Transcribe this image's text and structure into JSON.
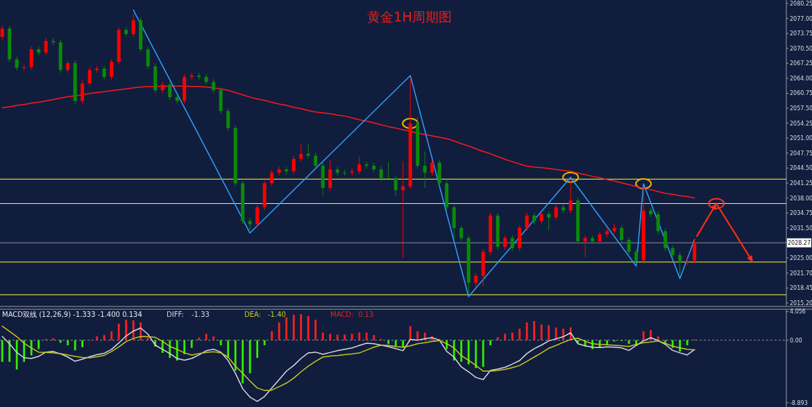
{
  "chart_data": [
    {
      "type": "candlestick",
      "title": "黄金1H周期图",
      "categories": [
        null,
        null,
        null,
        null,
        null,
        null,
        null,
        null,
        null,
        null,
        null,
        null,
        null,
        null,
        null,
        null,
        null,
        null,
        null,
        null,
        null,
        null,
        null,
        null,
        null,
        null,
        null,
        null,
        null,
        null,
        null,
        null,
        null,
        null,
        null,
        null,
        null,
        null,
        null,
        null,
        null,
        null,
        null,
        null,
        null,
        null,
        null,
        null,
        null,
        null,
        null,
        null,
        null,
        null,
        null,
        null,
        null,
        null,
        null,
        null,
        null,
        null,
        null,
        null,
        null,
        null,
        null,
        null,
        null,
        null,
        null,
        null,
        null,
        null,
        null,
        null,
        null,
        null,
        null,
        null,
        null,
        null,
        null,
        null,
        null,
        null,
        null,
        null,
        null,
        null,
        null,
        null,
        null,
        null,
        null,
        null
      ],
      "ohlc": [
        [
          2073.0,
          2075.4,
          2072.4,
          2074.8
        ],
        [
          2074.8,
          2075.4,
          2067.5,
          2068.1
        ],
        [
          2068.1,
          2068.7,
          2065.7,
          2066.3
        ],
        [
          2066.3,
          2067.0,
          2065.7,
          2066.4
        ],
        [
          2066.4,
          2070.9,
          2065.8,
          2070.3
        ],
        [
          2070.3,
          2070.9,
          2069.0,
          2069.6
        ],
        [
          2069.6,
          2072.7,
          2069.0,
          2072.1
        ],
        [
          2072.1,
          2072.7,
          2071.2,
          2071.8
        ],
        [
          2071.8,
          2072.4,
          2065.2,
          2065.8
        ],
        [
          2065.8,
          2067.9,
          2065.2,
          2067.3
        ],
        [
          2067.3,
          2067.9,
          2058.5,
          2059.1
        ],
        [
          2059.1,
          2063.5,
          2058.5,
          2062.9
        ],
        [
          2062.9,
          2066.4,
          2062.3,
          2065.8
        ],
        [
          2065.8,
          2066.7,
          2065.2,
          2066.1
        ],
        [
          2066.1,
          2066.7,
          2063.7,
          2064.3
        ],
        [
          2064.3,
          2068.2,
          2063.7,
          2067.6
        ],
        [
          2067.6,
          2075.1,
          2067.0,
          2074.5
        ],
        [
          2074.5,
          2075.1,
          2073.0,
          2073.6
        ],
        [
          2073.6,
          2078.0,
          2073.0,
          2076.6
        ],
        [
          2076.6,
          2077.2,
          2069.7,
          2070.3
        ],
        [
          2070.3,
          2070.9,
          2066.0,
          2066.6
        ],
        [
          2066.6,
          2067.2,
          2060.8,
          2061.4
        ],
        [
          2061.4,
          2063.2,
          2060.8,
          2062.6
        ],
        [
          2062.6,
          2063.2,
          2059.3,
          2059.9
        ],
        [
          2059.9,
          2060.5,
          2058.5,
          2059.1
        ],
        [
          2059.1,
          2064.9,
          2058.5,
          2064.3
        ],
        [
          2064.3,
          2065.2,
          2063.7,
          2064.6
        ],
        [
          2064.6,
          2065.2,
          2063.7,
          2064.3
        ],
        [
          2064.3,
          2064.9,
          2062.6,
          2063.2
        ],
        [
          2063.2,
          2063.8,
          2060.8,
          2061.4
        ],
        [
          2061.4,
          2062.0,
          2056.3,
          2056.9
        ],
        [
          2056.9,
          2057.5,
          2052.6,
          2053.2
        ],
        [
          2053.2,
          2053.8,
          2040.6,
          2041.2
        ],
        [
          2041.2,
          2041.8,
          2032.4,
          2033.0
        ],
        [
          2033.0,
          2033.6,
          2031.0,
          2032.3
        ],
        [
          2032.3,
          2036.6,
          2031.7,
          2036.0
        ],
        [
          2036.0,
          2041.8,
          2035.4,
          2041.2
        ],
        [
          2041.2,
          2044.1,
          2040.6,
          2043.5
        ],
        [
          2043.5,
          2044.8,
          2042.9,
          2044.2
        ],
        [
          2044.2,
          2044.8,
          2043.2,
          2043.8
        ],
        [
          2043.8,
          2047.1,
          2043.2,
          2046.5
        ],
        [
          2046.5,
          2049.8,
          2045.9,
          2047.6
        ],
        [
          2047.6,
          2049.6,
          2046.6,
          2047.2
        ],
        [
          2047.2,
          2047.8,
          2044.4,
          2045.0
        ],
        [
          2045.0,
          2045.6,
          2038.6,
          2040.2
        ],
        [
          2040.2,
          2046.3,
          2039.6,
          2044.2
        ],
        [
          2044.2,
          2044.8,
          2042.9,
          2043.5
        ],
        [
          2043.5,
          2044.1,
          2042.9,
          2043.5
        ],
        [
          2043.5,
          2044.4,
          2042.9,
          2043.8
        ],
        [
          2043.8,
          2047.0,
          2043.2,
          2045.3
        ],
        [
          2045.3,
          2045.9,
          2044.4,
          2045.0
        ],
        [
          2045.0,
          2045.6,
          2043.6,
          2044.2
        ],
        [
          2044.2,
          2044.8,
          2041.7,
          2042.3
        ],
        [
          2042.3,
          2045.8,
          2041.7,
          2042.3
        ],
        [
          2042.3,
          2042.9,
          2038.4,
          2039.7
        ],
        [
          2039.7,
          2046.0,
          2025.0,
          2040.5
        ],
        [
          2040.5,
          2064.0,
          2040.0,
          2054.2
        ],
        [
          2054.2,
          2055.6,
          2044.4,
          2045.0
        ],
        [
          2045.0,
          2048.1,
          2040.2,
          2043.5
        ],
        [
          2043.5,
          2046.3,
          2042.9,
          2045.7
        ],
        [
          2045.7,
          2046.3,
          2040.6,
          2041.2
        ],
        [
          2041.2,
          2041.8,
          2035.4,
          2036.0
        ],
        [
          2036.0,
          2036.6,
          2029.0,
          2031.5
        ],
        [
          2031.5,
          2032.1,
          2028.7,
          2029.3
        ],
        [
          2029.3,
          2029.9,
          2017.2,
          2019.6
        ],
        [
          2019.6,
          2021.7,
          2018.5,
          2021.1
        ],
        [
          2021.1,
          2026.9,
          2018.8,
          2026.3
        ],
        [
          2026.3,
          2034.8,
          2025.7,
          2034.2
        ],
        [
          2034.2,
          2034.8,
          2026.8,
          2027.4
        ],
        [
          2027.4,
          2029.9,
          2026.8,
          2029.3
        ],
        [
          2029.3,
          2029.9,
          2026.5,
          2027.1
        ],
        [
          2027.1,
          2032.1,
          2026.5,
          2031.5
        ],
        [
          2031.5,
          2034.8,
          2030.9,
          2034.2
        ],
        [
          2034.2,
          2034.8,
          2032.4,
          2033.0
        ],
        [
          2033.0,
          2035.1,
          2032.4,
          2034.5
        ],
        [
          2034.5,
          2035.1,
          2031.0,
          2033.8
        ],
        [
          2033.8,
          2036.6,
          2033.2,
          2036.0
        ],
        [
          2036.0,
          2036.6,
          2034.7,
          2035.3
        ],
        [
          2035.3,
          2041.9,
          2034.7,
          2037.5
        ],
        [
          2037.5,
          2038.1,
          2028.0,
          2028.6
        ],
        [
          2028.6,
          2029.9,
          2025.2,
          2029.3
        ],
        [
          2029.3,
          2029.9,
          2028.0,
          2028.6
        ],
        [
          2028.6,
          2030.7,
          2028.0,
          2030.1
        ],
        [
          2030.1,
          2031.4,
          2029.5,
          2030.8
        ],
        [
          2030.8,
          2032.5,
          2030.2,
          2031.5
        ],
        [
          2031.5,
          2032.1,
          2028.3,
          2028.9
        ],
        [
          2028.9,
          2029.5,
          2025.7,
          2026.3
        ],
        [
          2026.3,
          2026.9,
          2023.8,
          2024.4
        ],
        [
          2024.4,
          2040.5,
          2023.8,
          2035.3
        ],
        [
          2035.3,
          2035.9,
          2033.9,
          2034.5
        ],
        [
          2034.5,
          2035.1,
          2030.2,
          2030.8
        ],
        [
          2030.8,
          2031.4,
          2026.5,
          2027.1
        ],
        [
          2027.1,
          2027.7,
          2025.0,
          2025.6
        ],
        [
          2025.6,
          2026.2,
          2021.2,
          2024.1
        ],
        [
          2024.1,
          2025.0,
          2023.5,
          2024.4
        ],
        [
          2024.4,
          2028.9,
          2023.8,
          2028.3
        ]
      ],
      "colors": [
        "#ff0000",
        "#0a8a0a",
        "#0a8a0a",
        "#ff0000",
        "#ff0000",
        "#0a8a0a",
        "#ff0000",
        "#0a8a0a",
        "#0a8a0a",
        "#ff0000",
        "#0a8a0a",
        "#ff0000",
        "#ff0000",
        "#ff0000",
        "#0a8a0a",
        "#ff0000",
        "#ff0000",
        "#0a8a0a",
        "#ff0000",
        "#0a8a0a",
        "#0a8a0a",
        "#0a8a0a",
        "#ff0000",
        "#0a8a0a",
        "#0a8a0a",
        "#ff0000",
        "#ff0000",
        "#0a8a0a",
        "#0a8a0a",
        "#0a8a0a",
        "#0a8a0a",
        "#0a8a0a",
        "#0a8a0a",
        "#0a8a0a",
        "#0a8a0a",
        "#ff0000",
        "#ff0000",
        "#ff0000",
        "#ff0000",
        "#0a8a0a",
        "#ff0000",
        "#ff0000",
        "#0a8a0a",
        "#0a8a0a",
        "#0a8a0a",
        "#ff0000",
        "#0a8a0a",
        "#0a8a0a",
        "#ff0000",
        "#ff0000",
        "#0a8a0a",
        "#0a8a0a",
        "#0a8a0a",
        "#0a8a0a",
        "#0a8a0a",
        "#ff0000",
        "#ff0000",
        "#0a8a0a",
        "#0a8a0a",
        "#ff0000",
        "#0a8a0a",
        "#0a8a0a",
        "#0a8a0a",
        "#0a8a0a",
        "#0a8a0a",
        "#ff0000",
        "#ff0000",
        "#ff0000",
        "#0a8a0a",
        "#ff0000",
        "#0a8a0a",
        "#ff0000",
        "#ff0000",
        "#0a8a0a",
        "#ff0000",
        "#0a8a0a",
        "#ff0000",
        "#0a8a0a",
        "#ff0000",
        "#0a8a0a",
        "#ff0000",
        "#0a8a0a",
        "#ff0000",
        "#ff0000",
        "#ff0000",
        "#0a8a0a",
        "#0a8a0a",
        "#0a8a0a",
        "#ff0000",
        "#0a8a0a",
        "#0a8a0a",
        "#0a8a0a",
        "#0a8a0a",
        "#0a8a0a",
        "#ff0000",
        "#ff0000"
      ],
      "series": [
        {
          "type": "line",
          "color": "#ff1a1a",
          "values": [
            2057.6,
            2057.8,
            2058.1,
            2058.3,
            2058.6,
            2058.8,
            2059.1,
            2059.4,
            2059.7,
            2060.0,
            2060.2,
            2060.4,
            2060.7,
            2060.9,
            2061.1,
            2061.3,
            2061.5,
            2061.7,
            2061.9,
            2062.1,
            2062.2,
            2062.2,
            2062.3,
            2062.3,
            2062.3,
            2062.3,
            2062.2,
            2062.2,
            2062.1,
            2061.9,
            2061.7,
            2061.4,
            2060.9,
            2060.4,
            2059.9,
            2059.5,
            2059.2,
            2058.8,
            2058.4,
            2058.1,
            2057.7,
            2057.4,
            2057.0,
            2056.7,
            2056.5,
            2056.3,
            2056.0,
            2055.8,
            2055.4,
            2055.0,
            2054.7,
            2054.3,
            2053.9,
            2053.5,
            2053.2,
            2052.8,
            2052.5,
            2052.1,
            2051.8,
            2051.5,
            2051.2,
            2050.9,
            2050.4,
            2049.8,
            2049.3,
            2048.7,
            2048.1,
            2047.6,
            2047.0,
            2046.4,
            2045.9,
            2045.4,
            2044.9,
            2044.7,
            2044.6,
            2044.4,
            2044.2,
            2044.0,
            2043.8,
            2043.4,
            2043.1,
            2042.7,
            2042.4,
            2042.0,
            2041.7,
            2041.3,
            2040.9,
            2040.5,
            2040.1,
            2039.8,
            2039.4,
            2039.0,
            2038.8,
            2038.5,
            2038.3,
            2038.0
          ]
        },
        {
          "type": "line",
          "color": "#2ea0ff",
          "values": [
            null,
            null,
            null,
            null,
            null,
            null,
            null,
            null,
            null,
            null,
            null,
            null,
            null,
            null,
            null,
            null,
            null,
            null,
            2078.8,
            null,
            null,
            null,
            null,
            null,
            null,
            null,
            null,
            null,
            null,
            null,
            null,
            null,
            null,
            null,
            2030.4,
            null,
            null,
            null,
            null,
            null,
            null,
            null,
            null,
            null,
            null,
            null,
            null,
            null,
            null,
            null,
            null,
            null,
            null,
            null,
            null,
            null,
            2064.6,
            null,
            null,
            null,
            null,
            null,
            null,
            null,
            2016.6,
            null,
            null,
            null,
            null,
            null,
            null,
            null,
            null,
            null,
            null,
            null,
            null,
            null,
            2042.5,
            null,
            null,
            null,
            null,
            null,
            null,
            null,
            null,
            2023.2,
            2041.1,
            null,
            null,
            null,
            null,
            2020.5,
            null,
            2029.0
          ]
        }
      ],
      "ref_lines": [
        {
          "axis": "y",
          "value": 2042.1,
          "color": "#ffff33"
        },
        {
          "axis": "y",
          "value": 2036.8,
          "color": "#ffff33"
        },
        {
          "axis": "y",
          "value": 2024.1,
          "color": "#ffff33"
        },
        {
          "axis": "y",
          "value": 2017.0,
          "color": "#ffff33"
        },
        {
          "axis": "y",
          "value": 2028.27,
          "label": "2028.27",
          "color": "#8a8f99"
        }
      ],
      "ylim": [
        2014.6,
        2081.0
      ],
      "yticks": [
        2080.25,
        {
          "value": 2077,
          "label": "2077.00"
        },
        2073.75,
        {
          "value": 2070.5,
          "label": "2070.50"
        },
        2067.25,
        {
          "value": 2064,
          "label": "2064.00"
        },
        2060.75,
        {
          "value": 2057.5,
          "label": "2057.50"
        },
        2054.25,
        {
          "value": 2051,
          "label": "2051.00"
        },
        2047.75,
        {
          "value": 2044.5,
          "label": "2044.50"
        },
        2041.25,
        {
          "value": 2038,
          "label": "2038.00"
        },
        2034.75,
        {
          "value": 2031.5,
          "label": "2031.50"
        },
        {
          "value": 2025,
          "label": "2025.00"
        },
        {
          "value": 2021.7,
          "label": "2021.70"
        },
        2018.45,
        {
          "value": 2015.2,
          "label": "2015.20"
        }
      ],
      "tick_labels": "y"
    },
    {
      "type": "bar",
      "title": "MACD双线 (12,26,9) -1.333 -1.400 0.134",
      "categories": [
        null,
        null,
        null,
        null,
        null,
        null,
        null,
        null,
        null,
        null,
        null,
        null,
        null,
        null,
        null,
        null,
        null,
        null,
        null,
        null,
        null,
        null,
        null,
        null,
        null,
        null,
        null,
        null,
        null,
        null,
        null,
        null,
        null,
        null,
        null,
        null,
        null,
        null,
        null,
        null,
        null,
        null,
        null,
        null,
        null,
        null,
        null,
        null,
        null,
        null,
        null,
        null,
        null,
        null,
        null,
        null,
        null,
        null,
        null,
        null,
        null,
        null,
        null,
        null,
        null,
        null,
        null,
        null,
        null,
        null,
        null,
        null,
        null,
        null,
        null,
        null,
        null,
        null,
        null,
        null,
        null,
        null,
        null,
        null,
        null,
        null,
        null,
        null,
        null,
        null,
        null,
        null,
        null,
        null,
        null,
        null
      ],
      "series": [
        {
          "name": "DIFF:",
          "type": "line",
          "color": "#d8d8e0",
          "values": [
            0.54,
            -0.5,
            -1.75,
            -2.5,
            -2.6,
            -2.3,
            -1.7,
            -1.6,
            -1.95,
            -2.4,
            -3.0,
            -2.7,
            -2.35,
            -2.05,
            -1.85,
            -1.3,
            -0.4,
            0.6,
            1.3,
            1.74,
            0.85,
            -0.7,
            -1.3,
            -1.9,
            -2.6,
            -2.85,
            -2.6,
            -2.1,
            -1.5,
            -1.3,
            -1.7,
            -2.9,
            -4.7,
            -6.9,
            -8.1,
            -8.7,
            -8.0,
            -6.8,
            -5.6,
            -4.4,
            -3.6,
            -2.6,
            -1.8,
            -1.7,
            -2.0,
            -1.75,
            -1.5,
            -1.3,
            -1.1,
            -0.75,
            -0.43,
            -0.5,
            -0.7,
            -0.92,
            -1.2,
            -1.5,
            0.1,
            0.0,
            0.2,
            0.36,
            0.0,
            -1.6,
            -2.4,
            -3.8,
            -4.5,
            -5.3,
            -5.6,
            -4.3,
            -4.1,
            -3.85,
            -3.4,
            -2.9,
            -1.9,
            -1.2,
            -0.7,
            -0.1,
            0.2,
            0.5,
            1.05,
            -0.5,
            -0.8,
            -1.0,
            -1.05,
            -0.95,
            -1.0,
            -1.1,
            -1.45,
            -0.75,
            -0.1,
            0.36,
            -0.05,
            -0.6,
            -1.45,
            -1.8,
            -2.1,
            -1.33
          ]
        },
        {
          "name": "DEA:",
          "type": "line",
          "color": "#c8c81e",
          "values": [
            1.99,
            1.25,
            0.5,
            -0.45,
            -1.1,
            -1.7,
            -1.74,
            -1.8,
            -1.9,
            -2.1,
            -2.3,
            -2.45,
            -2.5,
            -2.35,
            -2.15,
            -1.6,
            -0.95,
            -0.2,
            0.25,
            0.54,
            0.5,
            0.4,
            -0.15,
            -0.9,
            -1.3,
            -1.8,
            -2.1,
            -1.9,
            -1.74,
            -1.65,
            -1.8,
            -2.4,
            -3.7,
            -4.7,
            -5.8,
            -6.8,
            -7.15,
            -7.1,
            -6.6,
            -6.1,
            -5.4,
            -4.5,
            -3.7,
            -3.0,
            -2.4,
            -2.25,
            -2.17,
            -2.05,
            -1.95,
            -1.82,
            -1.4,
            -1.0,
            -0.7,
            -0.75,
            -0.9,
            -1.0,
            -0.8,
            -0.5,
            -0.35,
            -0.18,
            -0.05,
            -0.5,
            -1.1,
            -2.2,
            -2.85,
            -3.6,
            -4.4,
            -4.4,
            -4.3,
            -4.15,
            -3.9,
            -3.6,
            -3.0,
            -2.4,
            -1.8,
            -1.15,
            -0.75,
            -0.3,
            0.1,
            0.29,
            -0.15,
            -0.5,
            -0.6,
            -0.65,
            -0.72,
            -0.8,
            -0.9,
            -0.6,
            -0.36,
            -0.25,
            -0.11,
            -0.45,
            -0.85,
            -1.1,
            -1.3,
            -1.4
          ]
        },
        {
          "name": "MACD:",
          "color": "#e52222",
          "values": [
            -3.08,
            -3.08,
            -4.16,
            -3.08,
            -2.17,
            -1.27,
            0.18,
            0.29,
            -0.36,
            -0.72,
            -1.45,
            -1.01,
            0.07,
            0.54,
            0.72,
            1.27,
            2.35,
            2.9,
            2.82,
            2.53,
            0.36,
            -0.91,
            -1.81,
            -2.53,
            -2.9,
            -1.99,
            -1.09,
            0.36,
            0.91,
            0.54,
            -0.72,
            -2.53,
            -4.34,
            -6.15,
            -4.71,
            -2.53,
            -0.72,
            1.27,
            2.53,
            3.26,
            3.62,
            3.69,
            3.44,
            2.9,
            1.09,
            0.91,
            0.8,
            0.8,
            0.91,
            1.09,
            1.09,
            0.72,
            0.18,
            -0.54,
            -0.91,
            -1.01,
            1.99,
            1.27,
            1.09,
            0.54,
            0.18,
            -1.27,
            -2.9,
            -3.08,
            -3.44,
            -3.98,
            -3.8,
            -0.72,
            0.43,
            0.91,
            1.09,
            1.63,
            2.53,
            2.72,
            2.24,
            2.1,
            1.81,
            1.63,
            1.81,
            -0.36,
            -0.91,
            -1.27,
            -1.09,
            -0.72,
            -0.18,
            -0.11,
            -0.54,
            -0.54,
            1.27,
            1.45,
            0.54,
            -0.36,
            -1.09,
            -1.63,
            -0.72,
            0.13
          ],
          "colors": [
            "#33ee00",
            "#33ee00",
            "#33ee00",
            "#33ee00",
            "#33ee00",
            "#33ee00",
            "#ff2020",
            "#ff2020",
            "#33ee00",
            "#33ee00",
            "#33ee00",
            "#33ee00",
            "#ff2020",
            "#ff2020",
            "#ff2020",
            "#ff2020",
            "#ff2020",
            "#ff2020",
            "#ff2020",
            "#ff2020",
            "#ff2020",
            "#33ee00",
            "#33ee00",
            "#33ee00",
            "#33ee00",
            "#33ee00",
            "#33ee00",
            "#ff2020",
            "#ff2020",
            "#ff2020",
            "#33ee00",
            "#33ee00",
            "#33ee00",
            "#33ee00",
            "#33ee00",
            "#33ee00",
            "#33ee00",
            "#ff2020",
            "#ff2020",
            "#ff2020",
            "#ff2020",
            "#ff2020",
            "#ff2020",
            "#ff2020",
            "#ff2020",
            "#ff2020",
            "#ff2020",
            "#ff2020",
            "#ff2020",
            "#ff2020",
            "#ff2020",
            "#ff2020",
            "#ff2020",
            "#33ee00",
            "#33ee00",
            "#33ee00",
            "#ff2020",
            "#ff2020",
            "#ff2020",
            "#ff2020",
            "#ff2020",
            "#33ee00",
            "#33ee00",
            "#33ee00",
            "#33ee00",
            "#33ee00",
            "#33ee00",
            "#33ee00",
            "#ff2020",
            "#ff2020",
            "#ff2020",
            "#ff2020",
            "#ff2020",
            "#ff2020",
            "#ff2020",
            "#ff2020",
            "#ff2020",
            "#ff2020",
            "#ff2020",
            "#33ee00",
            "#33ee00",
            "#33ee00",
            "#33ee00",
            "#33ee00",
            "#33ee00",
            "#33ee00",
            "#33ee00",
            "#33ee00",
            "#ff2020",
            "#ff2020",
            "#ff2020",
            "#33ee00",
            "#33ee00",
            "#33ee00",
            "#33ee00",
            "#ff2020"
          ]
        }
      ],
      "annotations": [
        "-1.33",
        "-1.40",
        "0.13"
      ],
      "ref_lines": [
        {
          "axis": "y",
          "value": 0,
          "color": "#8a8f99",
          "line_style": "dashed"
        }
      ],
      "ylim": [
        -9.5,
        4.4
      ],
      "yticks": [
        4.056,
        {
          "value": 0,
          "label": "0.00"
        },
        -8.893
      ],
      "tick_labels": "y"
    }
  ]
}
